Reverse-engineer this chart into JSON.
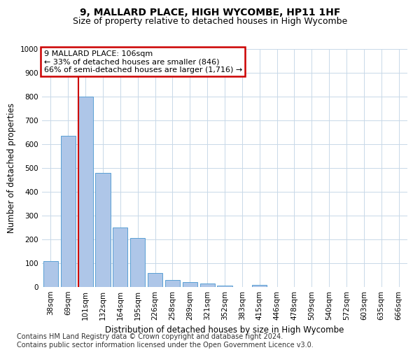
{
  "title": "9, MALLARD PLACE, HIGH WYCOMBE, HP11 1HF",
  "subtitle": "Size of property relative to detached houses in High Wycombe",
  "xlabel": "Distribution of detached houses by size in High Wycombe",
  "ylabel": "Number of detached properties",
  "categories": [
    "38sqm",
    "69sqm",
    "101sqm",
    "132sqm",
    "164sqm",
    "195sqm",
    "226sqm",
    "258sqm",
    "289sqm",
    "321sqm",
    "352sqm",
    "383sqm",
    "415sqm",
    "446sqm",
    "478sqm",
    "509sqm",
    "540sqm",
    "572sqm",
    "603sqm",
    "635sqm",
    "666sqm"
  ],
  "values": [
    110,
    635,
    800,
    480,
    250,
    207,
    60,
    28,
    22,
    15,
    5,
    0,
    10,
    0,
    0,
    0,
    0,
    0,
    0,
    0,
    0
  ],
  "bar_color": "#aec6e8",
  "bar_edge_color": "#5a9fd4",
  "vline_index": 2,
  "vline_color": "#cc0000",
  "ylim": [
    0,
    1000
  ],
  "yticks": [
    0,
    100,
    200,
    300,
    400,
    500,
    600,
    700,
    800,
    900,
    1000
  ],
  "annotation_text": "9 MALLARD PLACE: 106sqm\n← 33% of detached houses are smaller (846)\n66% of semi-detached houses are larger (1,716) →",
  "annotation_box_edge_color": "#cc0000",
  "footer_line1": "Contains HM Land Registry data © Crown copyright and database right 2024.",
  "footer_line2": "Contains public sector information licensed under the Open Government Licence v3.0.",
  "bg_color": "#ffffff",
  "grid_color": "#c8d8e8",
  "title_fontsize": 10,
  "subtitle_fontsize": 9,
  "axis_label_fontsize": 8.5,
  "tick_fontsize": 7.5,
  "annotation_fontsize": 8,
  "footer_fontsize": 7
}
